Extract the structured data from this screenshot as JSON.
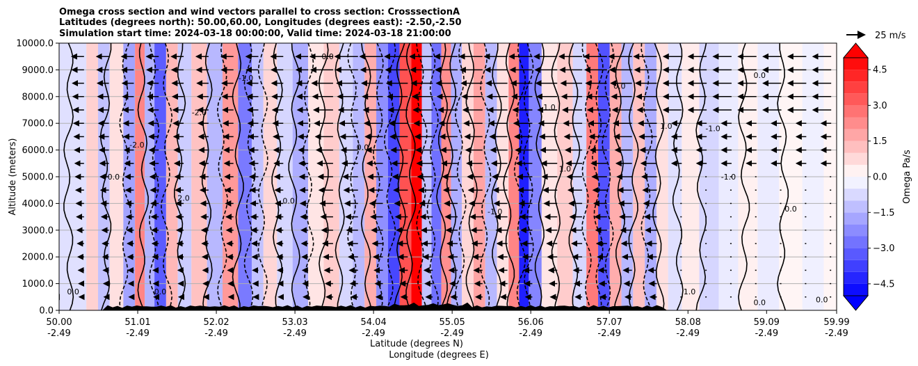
{
  "chart_data": {
    "type": "heatmap",
    "title": [
      "Omega cross section and wind vectors parallel to cross section: CrosssectionA",
      "Latitudes (degrees north): 50.00,60.00, Longitudes (degrees east): -2.50,-2.50",
      "Simulation start time: 2024-03-18 00:00:00, Valid time: 2024-03-18 21:00:00"
    ],
    "ylabel": "Altitude (meters)",
    "xlabel_lat": "Latitude (degrees N)",
    "xlabel_lon": "Longitude (degrees E)",
    "ylim": [
      0,
      10000
    ],
    "xlim": [
      50.0,
      59.99
    ],
    "y_ticks": [
      0,
      1000,
      2000,
      3000,
      4000,
      5000,
      6000,
      7000,
      8000,
      9000,
      10000
    ],
    "y_tick_labels": [
      "0.0",
      "1000.0",
      "2000.0",
      "3000.0",
      "4000.0",
      "5000.0",
      "6000.0",
      "7000.0",
      "8000.0",
      "9000.0",
      "10000.0"
    ],
    "x_ticks": [
      {
        "value": 50.0,
        "lat": "50.00",
        "lon": "-2.49"
      },
      {
        "value": 51.01,
        "lat": "51.01",
        "lon": "-2.49"
      },
      {
        "value": 52.02,
        "lat": "52.02",
        "lon": "-2.49"
      },
      {
        "value": 53.03,
        "lat": "53.03",
        "lon": "-2.49"
      },
      {
        "value": 54.04,
        "lat": "54.04",
        "lon": "-2.49"
      },
      {
        "value": 55.05,
        "lat": "55.05",
        "lon": "-2.49"
      },
      {
        "value": 56.06,
        "lat": "56.06",
        "lon": "-2.49"
      },
      {
        "value": 57.07,
        "lat": "57.07",
        "lon": "-2.49"
      },
      {
        "value": 58.08,
        "lat": "58.08",
        "lon": "-2.49"
      },
      {
        "value": 59.09,
        "lat": "59.09",
        "lon": "-2.49"
      },
      {
        "value": 59.99,
        "lat": "59.99",
        "lon": "-2.49"
      }
    ],
    "grid": "horizontal",
    "colorbar": {
      "label": "Omega Pa/s",
      "vmin": -5.0,
      "vmax": 5.0,
      "ticks": [
        -4.5,
        -3.0,
        -1.5,
        0.0,
        1.5,
        3.0,
        4.5
      ],
      "tick_labels": [
        "−4.5",
        "−3.0",
        "−1.5",
        "0.0",
        "1.5",
        "3.0",
        "4.5"
      ],
      "colormap": "bwr",
      "extend": "both"
    },
    "quiver_key": {
      "value": 25,
      "label": "25 m/s"
    },
    "omega_bands": [
      {
        "lat": 50.25,
        "omega": -0.6
      },
      {
        "lat": 50.45,
        "omega": 0.9
      },
      {
        "lat": 50.55,
        "omega": -1.2
      },
      {
        "lat": 50.75,
        "omega": 0.6
      },
      {
        "lat": 50.9,
        "omega": -1.8
      },
      {
        "lat": 51.05,
        "omega": 2.4
      },
      {
        "lat": 51.15,
        "omega": -1.5
      },
      {
        "lat": 51.3,
        "omega": -3.2
      },
      {
        "lat": 51.45,
        "omega": 1.4
      },
      {
        "lat": 51.6,
        "omega": -1.0
      },
      {
        "lat": 51.8,
        "omega": 1.2
      },
      {
        "lat": 52.0,
        "omega": -1.4
      },
      {
        "lat": 52.2,
        "omega": 2.0
      },
      {
        "lat": 52.4,
        "omega": -2.6
      },
      {
        "lat": 52.55,
        "omega": -1.2
      },
      {
        "lat": 52.7,
        "omega": 0.8
      },
      {
        "lat": 52.9,
        "omega": -0.8
      },
      {
        "lat": 53.1,
        "omega": -1.6
      },
      {
        "lat": 53.3,
        "omega": 0.5
      },
      {
        "lat": 53.5,
        "omega": 1.0
      },
      {
        "lat": 53.7,
        "omega": -0.8
      },
      {
        "lat": 53.85,
        "omega": -1.4
      },
      {
        "lat": 54.0,
        "omega": 1.6
      },
      {
        "lat": 54.15,
        "omega": -2.2
      },
      {
        "lat": 54.3,
        "omega": -3.6
      },
      {
        "lat": 54.45,
        "omega": 3.4
      },
      {
        "lat": 54.6,
        "omega": 5.0
      },
      {
        "lat": 54.72,
        "omega": -1.2
      },
      {
        "lat": 54.85,
        "omega": -2.8
      },
      {
        "lat": 54.97,
        "omega": 2.2
      },
      {
        "lat": 55.1,
        "omega": -1.6
      },
      {
        "lat": 55.25,
        "omega": 0.8
      },
      {
        "lat": 55.4,
        "omega": 1.8
      },
      {
        "lat": 55.55,
        "omega": -1.4
      },
      {
        "lat": 55.7,
        "omega": 0.6
      },
      {
        "lat": 55.85,
        "omega": 2.4
      },
      {
        "lat": 55.97,
        "omega": -4.4
      },
      {
        "lat": 56.1,
        "omega": -2.4
      },
      {
        "lat": 56.3,
        "omega": 0.5
      },
      {
        "lat": 56.5,
        "omega": 1.0
      },
      {
        "lat": 56.7,
        "omega": -0.8
      },
      {
        "lat": 56.85,
        "omega": 2.6
      },
      {
        "lat": 57.0,
        "omega": -3.4
      },
      {
        "lat": 57.15,
        "omega": 1.6
      },
      {
        "lat": 57.3,
        "omega": -1.4
      },
      {
        "lat": 57.45,
        "omega": 1.2
      },
      {
        "lat": 57.6,
        "omega": -1.6
      },
      {
        "lat": 57.75,
        "omega": 0.6
      },
      {
        "lat": 57.9,
        "omega": -0.6
      },
      {
        "lat": 58.1,
        "omega": 0.4
      },
      {
        "lat": 58.35,
        "omega": -0.8
      },
      {
        "lat": 58.6,
        "omega": -0.4
      },
      {
        "lat": 58.85,
        "omega": 0.3
      },
      {
        "lat": 59.1,
        "omega": -0.4
      },
      {
        "lat": 59.4,
        "omega": 0.2
      },
      {
        "lat": 59.7,
        "omega": -0.3
      },
      {
        "lat": 59.95,
        "omega": 0.2
      }
    ],
    "contours": [
      {
        "lat": 50.12,
        "style": "solid"
      },
      {
        "lat": 50.6,
        "style": "solid"
      },
      {
        "lat": 50.85,
        "style": "dashed"
      },
      {
        "lat": 51.08,
        "style": "solid"
      },
      {
        "lat": 51.22,
        "style": "dashed"
      },
      {
        "lat": 51.38,
        "style": "dashed"
      },
      {
        "lat": 51.55,
        "style": "solid"
      },
      {
        "lat": 51.9,
        "style": "solid"
      },
      {
        "lat": 52.1,
        "style": "dashed"
      },
      {
        "lat": 52.3,
        "style": "solid"
      },
      {
        "lat": 52.45,
        "style": "dashed"
      },
      {
        "lat": 52.62,
        "style": "dashed"
      },
      {
        "lat": 52.8,
        "style": "solid"
      },
      {
        "lat": 53.02,
        "style": "solid"
      },
      {
        "lat": 53.2,
        "style": "dashed"
      },
      {
        "lat": 53.4,
        "style": "solid"
      },
      {
        "lat": 53.62,
        "style": "solid"
      },
      {
        "lat": 53.78,
        "style": "dashed"
      },
      {
        "lat": 53.95,
        "style": "solid"
      },
      {
        "lat": 54.1,
        "style": "dashed"
      },
      {
        "lat": 54.25,
        "style": "dashed"
      },
      {
        "lat": 54.38,
        "style": "solid"
      },
      {
        "lat": 54.52,
        "style": "solid"
      },
      {
        "lat": 54.66,
        "style": "dashed"
      },
      {
        "lat": 54.8,
        "style": "dashed"
      },
      {
        "lat": 54.92,
        "style": "solid"
      },
      {
        "lat": 55.04,
        "style": "solid"
      },
      {
        "lat": 55.16,
        "style": "dashed"
      },
      {
        "lat": 55.3,
        "style": "solid"
      },
      {
        "lat": 55.48,
        "style": "dashed"
      },
      {
        "lat": 55.62,
        "style": "solid"
      },
      {
        "lat": 55.78,
        "style": "solid"
      },
      {
        "lat": 55.92,
        "style": "dashed"
      },
      {
        "lat": 56.03,
        "style": "dashed"
      },
      {
        "lat": 56.18,
        "style": "solid"
      },
      {
        "lat": 56.4,
        "style": "solid"
      },
      {
        "lat": 56.62,
        "style": "solid"
      },
      {
        "lat": 56.78,
        "style": "dashed"
      },
      {
        "lat": 56.92,
        "style": "dashed"
      },
      {
        "lat": 57.05,
        "style": "dashed"
      },
      {
        "lat": 57.2,
        "style": "solid"
      },
      {
        "lat": 57.38,
        "style": "solid"
      },
      {
        "lat": 57.55,
        "style": "dashed"
      },
      {
        "lat": 57.7,
        "style": "solid"
      },
      {
        "lat": 57.95,
        "style": "solid"
      },
      {
        "lat": 58.25,
        "style": "solid"
      },
      {
        "lat": 58.8,
        "style": "solid"
      },
      {
        "lat": 59.3,
        "style": "solid"
      }
    ],
    "contour_labels": [
      {
        "text": "0.0",
        "lat": 53.45,
        "alt": 9400
      },
      {
        "text": "-1.0",
        "lat": 52.4,
        "alt": 8600
      },
      {
        "text": "0.0",
        "lat": 57.2,
        "alt": 8300
      },
      {
        "text": "0.0",
        "lat": 59.0,
        "alt": 8700
      },
      {
        "text": "-2.0",
        "lat": 51.8,
        "alt": 7300
      },
      {
        "text": "1.0",
        "lat": 56.3,
        "alt": 7500
      },
      {
        "text": "-1.0",
        "lat": 58.4,
        "alt": 6700
      },
      {
        "text": "1.0",
        "lat": 56.5,
        "alt": 5200
      },
      {
        "text": "-1.0",
        "lat": 58.6,
        "alt": 4900
      },
      {
        "text": "0.0",
        "lat": 50.7,
        "alt": 4900
      },
      {
        "text": "0.0",
        "lat": 52.95,
        "alt": 4000
      },
      {
        "text": "-1.0",
        "lat": 55.6,
        "alt": 3600
      },
      {
        "text": "0.0",
        "lat": 59.4,
        "alt": 3700
      },
      {
        "text": "2.0",
        "lat": 51.6,
        "alt": 4100
      },
      {
        "text": "0.0",
        "lat": 50.18,
        "alt": 600
      },
      {
        "text": "1.0",
        "lat": 58.1,
        "alt": 600
      },
      {
        "text": "0.0",
        "lat": 59.0,
        "alt": 200
      },
      {
        "text": "0.0",
        "lat": 59.8,
        "alt": 300
      },
      {
        "text": "-2.0",
        "lat": 51.0,
        "alt": 6100
      },
      {
        "text": "0.0",
        "lat": 51.3,
        "alt": 600
      },
      {
        "text": "1.0",
        "lat": 57.8,
        "alt": 6800
      },
      {
        "text": "0.0",
        "lat": 53.9,
        "alt": 6000
      }
    ]
  }
}
